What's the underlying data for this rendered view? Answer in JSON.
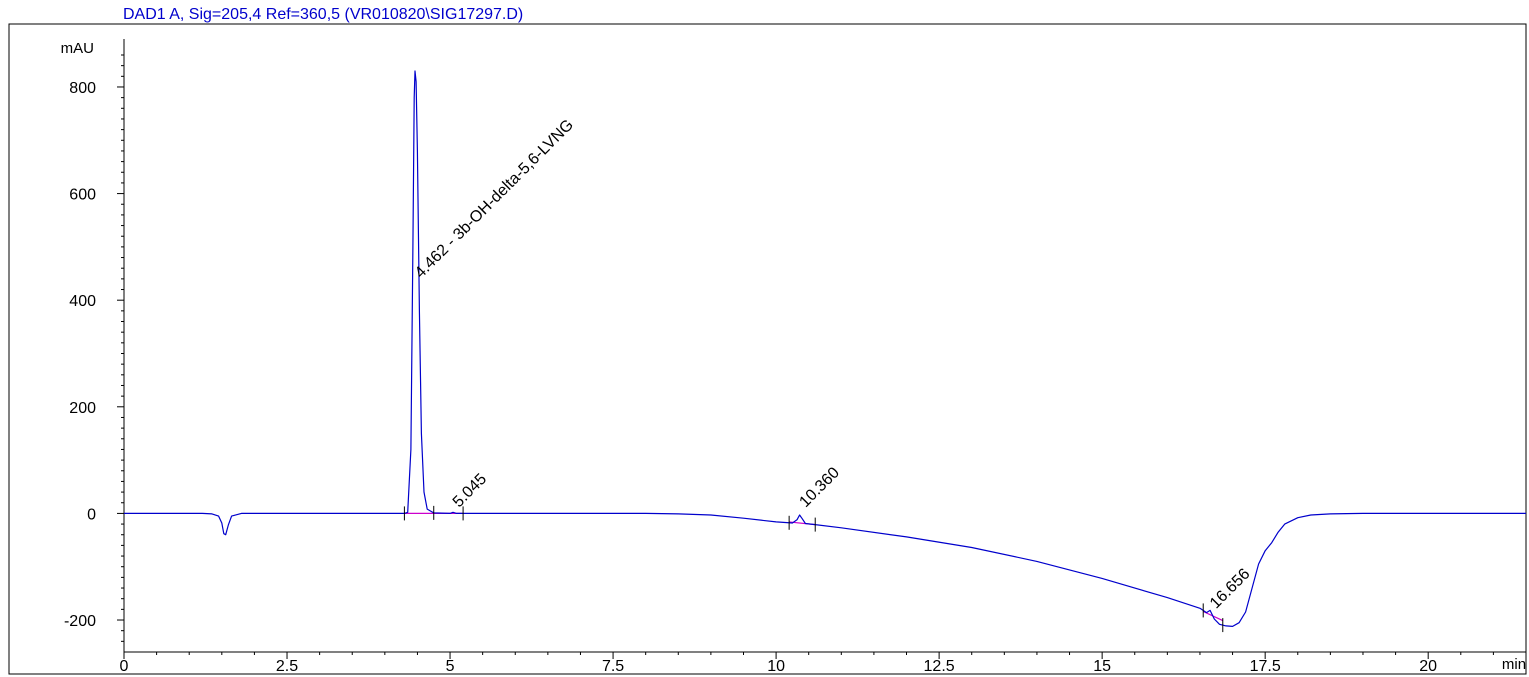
{
  "chart_data": {
    "type": "line",
    "title": "DAD1 A, Sig=205,4 Ref=360,5 (VR010820\\SIG17297.D)",
    "ylabel": "mAU",
    "xlabel": "min",
    "xlim": [
      0,
      21.5
    ],
    "ylim": [
      -260,
      890
    ],
    "x_ticks": [
      0,
      2.5,
      5,
      7.5,
      10,
      12.5,
      15,
      17.5,
      20
    ],
    "x_tick_labels": [
      "0",
      "2.5",
      "5",
      "7.5",
      "10",
      "12.5",
      "15",
      "17.5",
      "20"
    ],
    "y_ticks": [
      -200,
      0,
      200,
      400,
      600,
      800
    ],
    "y_tick_labels": [
      "-200",
      "0",
      "200",
      "400",
      "600",
      "800"
    ],
    "series": [
      {
        "color": "#0000cc",
        "x": [
          0,
          1.2,
          1.35,
          1.45,
          1.5,
          1.53,
          1.56,
          1.6,
          1.65,
          1.8,
          4.0,
          4.3,
          4.35,
          4.4,
          4.43,
          4.45,
          4.462,
          4.48,
          4.5,
          4.53,
          4.56,
          4.6,
          4.65,
          4.75,
          5.0,
          5.045,
          5.1,
          6.0,
          7.0,
          8.0,
          8.5,
          9.0,
          9.5,
          10.0,
          10.25,
          10.32,
          10.36,
          10.4,
          10.45,
          10.6,
          11.0,
          12.0,
          13.0,
          14.0,
          15.0,
          16.0,
          16.5,
          16.6,
          16.656,
          16.72,
          16.8,
          16.9,
          17.0,
          17.1,
          17.2,
          17.3,
          17.4,
          17.5,
          17.6,
          17.7,
          17.8,
          18.0,
          18.2,
          18.5,
          19.0,
          20.0,
          21.0,
          21.5
        ],
        "y": [
          0,
          0,
          -1,
          -5,
          -18,
          -38,
          -40,
          -22,
          -5,
          0,
          0,
          0,
          2,
          120,
          500,
          780,
          830,
          810,
          680,
          380,
          150,
          40,
          8,
          1,
          0,
          2,
          0,
          0,
          0,
          0,
          -1,
          -3,
          -9,
          -16,
          -18,
          -12,
          -3,
          -10,
          -19,
          -21,
          -27,
          -44,
          -64,
          -90,
          -122,
          -158,
          -178,
          -186,
          -182,
          -198,
          -208,
          -211,
          -212,
          -205,
          -185,
          -140,
          -95,
          -70,
          -55,
          -35,
          -20,
          -8,
          -3,
          -1,
          0,
          0,
          0,
          0
        ]
      }
    ],
    "baselines": [
      {
        "color": "#cc00cc",
        "x": [
          4.3,
          4.75
        ],
        "y": [
          0,
          0
        ]
      },
      {
        "color": "#cc00cc",
        "x": [
          4.75,
          5.2
        ],
        "y": [
          0,
          0
        ]
      },
      {
        "color": "#cc00cc",
        "x": [
          10.2,
          10.6
        ],
        "y": [
          -16,
          -21
        ]
      },
      {
        "color": "#cc00cc",
        "x": [
          16.55,
          16.85
        ],
        "y": [
          -184,
          -201
        ]
      }
    ],
    "markers": [
      4.3,
      4.75,
      5.2,
      10.2,
      10.6,
      16.55,
      16.85
    ],
    "peak_labels": [
      {
        "x": 4.462,
        "y": 440,
        "text": "4.462 - 3b-OH-delta-5,6-LVNG"
      },
      {
        "x": 5.045,
        "y": 10,
        "text": "5.045"
      },
      {
        "x": 10.36,
        "y": 10,
        "text": "10.360"
      },
      {
        "x": 16.656,
        "y": -180,
        "text": "16.656"
      }
    ]
  }
}
